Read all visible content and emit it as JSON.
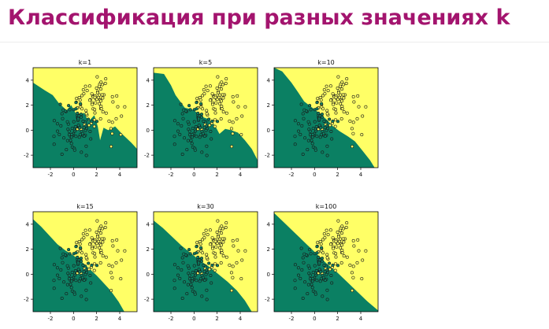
{
  "slide": {
    "title": "Классификация при разных значениях k",
    "title_color": "#a3146e"
  },
  "colors": {
    "yellow_region": "#ffff66",
    "green_region": "#0b8063",
    "point_stroke": "#1a1a1a",
    "yellow_point_fill": "#ffff66",
    "green_point_fill": "#0b8063"
  },
  "chart_data": [
    {
      "type": "scatter",
      "title": "k=1",
      "xlim": [
        -3.5,
        5.5
      ],
      "ylim": [
        -3,
        5
      ],
      "xticks": [
        "-2",
        "0",
        "2",
        "4"
      ],
      "yticks": [
        "-2",
        "0",
        "2",
        "4"
      ],
      "boundary": "irregular",
      "grid": false
    },
    {
      "type": "scatter",
      "title": "k=5",
      "xlim": [
        -3.5,
        5.5
      ],
      "ylim": [
        -3,
        5
      ],
      "xticks": [
        "-2",
        "0",
        "2",
        "4"
      ],
      "yticks": [
        "-2",
        "0",
        "2",
        "4"
      ],
      "boundary": "irregular",
      "grid": false
    },
    {
      "type": "scatter",
      "title": "k=10",
      "xlim": [
        -3.5,
        5.5
      ],
      "ylim": [
        -3,
        5
      ],
      "xticks": [
        "-2",
        "0",
        "2",
        "4"
      ],
      "yticks": [
        "-2",
        "0",
        "2",
        "4"
      ],
      "boundary": "wavy",
      "grid": false
    },
    {
      "type": "scatter",
      "title": "k=15",
      "xlim": [
        -3.5,
        5.5
      ],
      "ylim": [
        -3,
        5
      ],
      "xticks": [
        "-2",
        "0",
        "2",
        "4"
      ],
      "yticks": [
        "-2",
        "0",
        "2",
        "4"
      ],
      "boundary": "smooth",
      "grid": false
    },
    {
      "type": "scatter",
      "title": "k=30",
      "xlim": [
        -3.5,
        5.5
      ],
      "ylim": [
        -3,
        5
      ],
      "xticks": [
        "-2",
        "0",
        "2",
        "4"
      ],
      "yticks": [
        "-2",
        "0",
        "2",
        "4"
      ],
      "boundary": "smooth",
      "grid": false
    },
    {
      "type": "scatter",
      "title": "k=100",
      "xlim": [
        -3.5,
        5.5
      ],
      "ylim": [
        -3,
        5
      ],
      "xticks": [
        "-2",
        "0",
        "2",
        "4"
      ],
      "yticks": [
        "-2",
        "0",
        "2",
        "4"
      ],
      "boundary": "near-linear",
      "grid": false
    }
  ]
}
